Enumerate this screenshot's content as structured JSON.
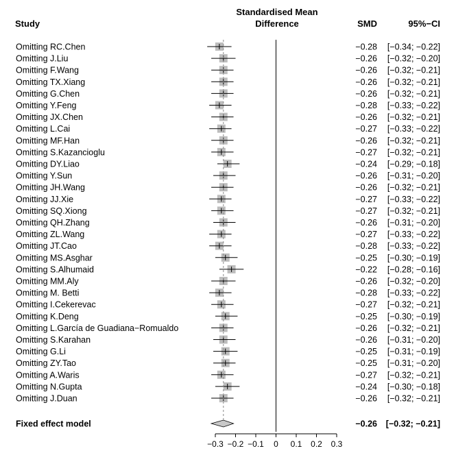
{
  "chart_data": {
    "type": "forest",
    "headers": {
      "study": "Study",
      "effect_line1": "Standardised Mean",
      "effect_line2": "Difference",
      "smd": "SMD",
      "ci": "95%−CI"
    },
    "xlim": [
      -0.3,
      0.3
    ],
    "ticks": [
      "−0.3",
      "−0.2",
      "−0.1",
      "0",
      "0.1",
      "0.2",
      "0.3"
    ],
    "tick_values": [
      -0.3,
      -0.2,
      -0.1,
      0,
      0.1,
      0.2,
      0.3
    ],
    "studies": [
      {
        "label": "Omitting RC.Chen",
        "smd": -0.28,
        "lo": -0.34,
        "hi": -0.22,
        "smd_text": "−0.28",
        "ci_text": "[−0.34; −0.22]"
      },
      {
        "label": "Omitting J.Liu",
        "smd": -0.26,
        "lo": -0.32,
        "hi": -0.2,
        "smd_text": "−0.26",
        "ci_text": "[−0.32; −0.20]"
      },
      {
        "label": "Omitting F.Wang",
        "smd": -0.26,
        "lo": -0.32,
        "hi": -0.21,
        "smd_text": "−0.26",
        "ci_text": "[−0.32; −0.21]"
      },
      {
        "label": "Omitting TX.Xiang",
        "smd": -0.26,
        "lo": -0.32,
        "hi": -0.21,
        "smd_text": "−0.26",
        "ci_text": "[−0.32; −0.21]"
      },
      {
        "label": "Omitting G.Chen",
        "smd": -0.26,
        "lo": -0.32,
        "hi": -0.21,
        "smd_text": "−0.26",
        "ci_text": "[−0.32; −0.21]"
      },
      {
        "label": "Omitting Y.Feng",
        "smd": -0.28,
        "lo": -0.33,
        "hi": -0.22,
        "smd_text": "−0.28",
        "ci_text": "[−0.33; −0.22]"
      },
      {
        "label": "Omitting JX.Chen",
        "smd": -0.26,
        "lo": -0.32,
        "hi": -0.21,
        "smd_text": "−0.26",
        "ci_text": "[−0.32; −0.21]"
      },
      {
        "label": "Omitting L.Cai",
        "smd": -0.27,
        "lo": -0.33,
        "hi": -0.22,
        "smd_text": "−0.27",
        "ci_text": "[−0.33; −0.22]"
      },
      {
        "label": "Omitting MF.Han",
        "smd": -0.26,
        "lo": -0.32,
        "hi": -0.21,
        "smd_text": "−0.26",
        "ci_text": "[−0.32; −0.21]"
      },
      {
        "label": "Omitting S.Kazancioglu",
        "smd": -0.27,
        "lo": -0.32,
        "hi": -0.21,
        "smd_text": "−0.27",
        "ci_text": "[−0.32; −0.21]"
      },
      {
        "label": "Omitting DY.Liao",
        "smd": -0.24,
        "lo": -0.29,
        "hi": -0.18,
        "smd_text": "−0.24",
        "ci_text": "[−0.29; −0.18]"
      },
      {
        "label": "Omitting Y.Sun",
        "smd": -0.26,
        "lo": -0.31,
        "hi": -0.2,
        "smd_text": "−0.26",
        "ci_text": "[−0.31; −0.20]"
      },
      {
        "label": "Omitting JH.Wang",
        "smd": -0.26,
        "lo": -0.32,
        "hi": -0.21,
        "smd_text": "−0.26",
        "ci_text": "[−0.32; −0.21]"
      },
      {
        "label": "Omitting JJ.Xie",
        "smd": -0.27,
        "lo": -0.33,
        "hi": -0.22,
        "smd_text": "−0.27",
        "ci_text": "[−0.33; −0.22]"
      },
      {
        "label": "Omitting SQ.Xiong",
        "smd": -0.27,
        "lo": -0.32,
        "hi": -0.21,
        "smd_text": "−0.27",
        "ci_text": "[−0.32; −0.21]"
      },
      {
        "label": "Omitting QH.Zhang",
        "smd": -0.26,
        "lo": -0.31,
        "hi": -0.2,
        "smd_text": "−0.26",
        "ci_text": "[−0.31; −0.20]"
      },
      {
        "label": "Omitting ZL.Wang",
        "smd": -0.27,
        "lo": -0.33,
        "hi": -0.22,
        "smd_text": "−0.27",
        "ci_text": "[−0.33; −0.22]"
      },
      {
        "label": "Omitting JT.Cao",
        "smd": -0.28,
        "lo": -0.33,
        "hi": -0.22,
        "smd_text": "−0.28",
        "ci_text": "[−0.33; −0.22]"
      },
      {
        "label": "Omitting MS.Asghar",
        "smd": -0.25,
        "lo": -0.3,
        "hi": -0.19,
        "smd_text": "−0.25",
        "ci_text": "[−0.30; −0.19]"
      },
      {
        "label": "Omitting S.Alhumaid",
        "smd": -0.22,
        "lo": -0.28,
        "hi": -0.16,
        "smd_text": "−0.22",
        "ci_text": "[−0.28; −0.16]"
      },
      {
        "label": "Omitting MM.Aly",
        "smd": -0.26,
        "lo": -0.32,
        "hi": -0.2,
        "smd_text": "−0.26",
        "ci_text": "[−0.32; −0.20]"
      },
      {
        "label": "Omitting M. Betti",
        "smd": -0.28,
        "lo": -0.33,
        "hi": -0.22,
        "smd_text": "−0.28",
        "ci_text": "[−0.33; −0.22]"
      },
      {
        "label": "Omitting I.Cekerevac",
        "smd": -0.27,
        "lo": -0.32,
        "hi": -0.21,
        "smd_text": "−0.27",
        "ci_text": "[−0.32; −0.21]"
      },
      {
        "label": "Omitting K.Deng",
        "smd": -0.25,
        "lo": -0.3,
        "hi": -0.19,
        "smd_text": "−0.25",
        "ci_text": "[−0.30; −0.19]"
      },
      {
        "label": "Omitting L.García de Guadiana−Romualdo",
        "smd": -0.26,
        "lo": -0.32,
        "hi": -0.21,
        "smd_text": "−0.26",
        "ci_text": "[−0.32; −0.21]"
      },
      {
        "label": "Omitting S.Karahan",
        "smd": -0.26,
        "lo": -0.31,
        "hi": -0.2,
        "smd_text": "−0.26",
        "ci_text": "[−0.31; −0.20]"
      },
      {
        "label": "Omitting G.Li",
        "smd": -0.25,
        "lo": -0.31,
        "hi": -0.19,
        "smd_text": "−0.25",
        "ci_text": "[−0.31; −0.19]"
      },
      {
        "label": "Omitting ZY.Tao",
        "smd": -0.25,
        "lo": -0.31,
        "hi": -0.2,
        "smd_text": "−0.25",
        "ci_text": "[−0.31; −0.20]"
      },
      {
        "label": "Omitting A.Waris",
        "smd": -0.27,
        "lo": -0.32,
        "hi": -0.21,
        "smd_text": "−0.27",
        "ci_text": "[−0.32; −0.21]"
      },
      {
        "label": "Omitting N.Gupta",
        "smd": -0.24,
        "lo": -0.3,
        "hi": -0.18,
        "smd_text": "−0.24",
        "ci_text": "[−0.30; −0.18]"
      },
      {
        "label": "Omitting J.Duan",
        "smd": -0.26,
        "lo": -0.32,
        "hi": -0.21,
        "smd_text": "−0.26",
        "ci_text": "[−0.32; −0.21]"
      }
    ],
    "pooled": {
      "label": "Fixed effect model",
      "smd": -0.26,
      "lo": -0.32,
      "hi": -0.21,
      "smd_text": "−0.26",
      "ci_text": "[−0.32; −0.21]"
    },
    "colors": {
      "box": "#bdbdbd",
      "line": "#000000",
      "diamond": "#c8c8c8",
      "pooled_line": "#888888"
    }
  }
}
